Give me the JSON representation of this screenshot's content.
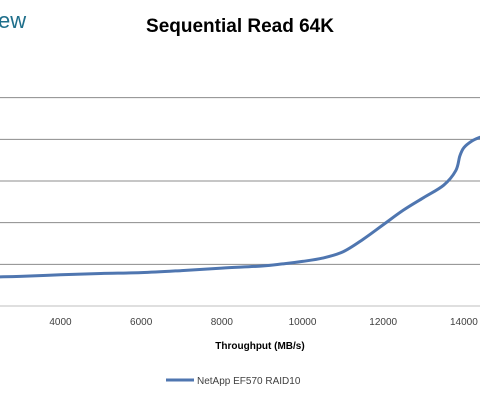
{
  "logo_text": "ew",
  "chart_data": {
    "type": "line",
    "title": "Sequential Read 64K",
    "xlabel": "Throughput (MB/s)",
    "ylabel": "",
    "x_ticks": [
      "4000",
      "6000",
      "8000",
      "10000",
      "12000",
      "14000"
    ],
    "xlim": [
      2500,
      14400
    ],
    "ylim": [
      0,
      6
    ],
    "gridlines": [
      1,
      2,
      3,
      4,
      5
    ],
    "grid": true,
    "legend_position": "bottom",
    "series": [
      {
        "name": "NetApp EF570 RAID10",
        "color": "#4f76b0",
        "x": [
          2500,
          3000,
          4000,
          5000,
          6000,
          7000,
          8000,
          9000,
          9500,
          10000,
          10500,
          11000,
          11500,
          12000,
          12500,
          13000,
          13500,
          13800,
          13900,
          14000,
          14200,
          14400
        ],
        "y": [
          0.7,
          0.71,
          0.75,
          0.78,
          0.8,
          0.85,
          0.91,
          0.96,
          1.01,
          1.07,
          1.15,
          1.3,
          1.6,
          1.95,
          2.3,
          2.6,
          2.9,
          3.25,
          3.6,
          3.8,
          3.96,
          4.05
        ]
      }
    ]
  }
}
